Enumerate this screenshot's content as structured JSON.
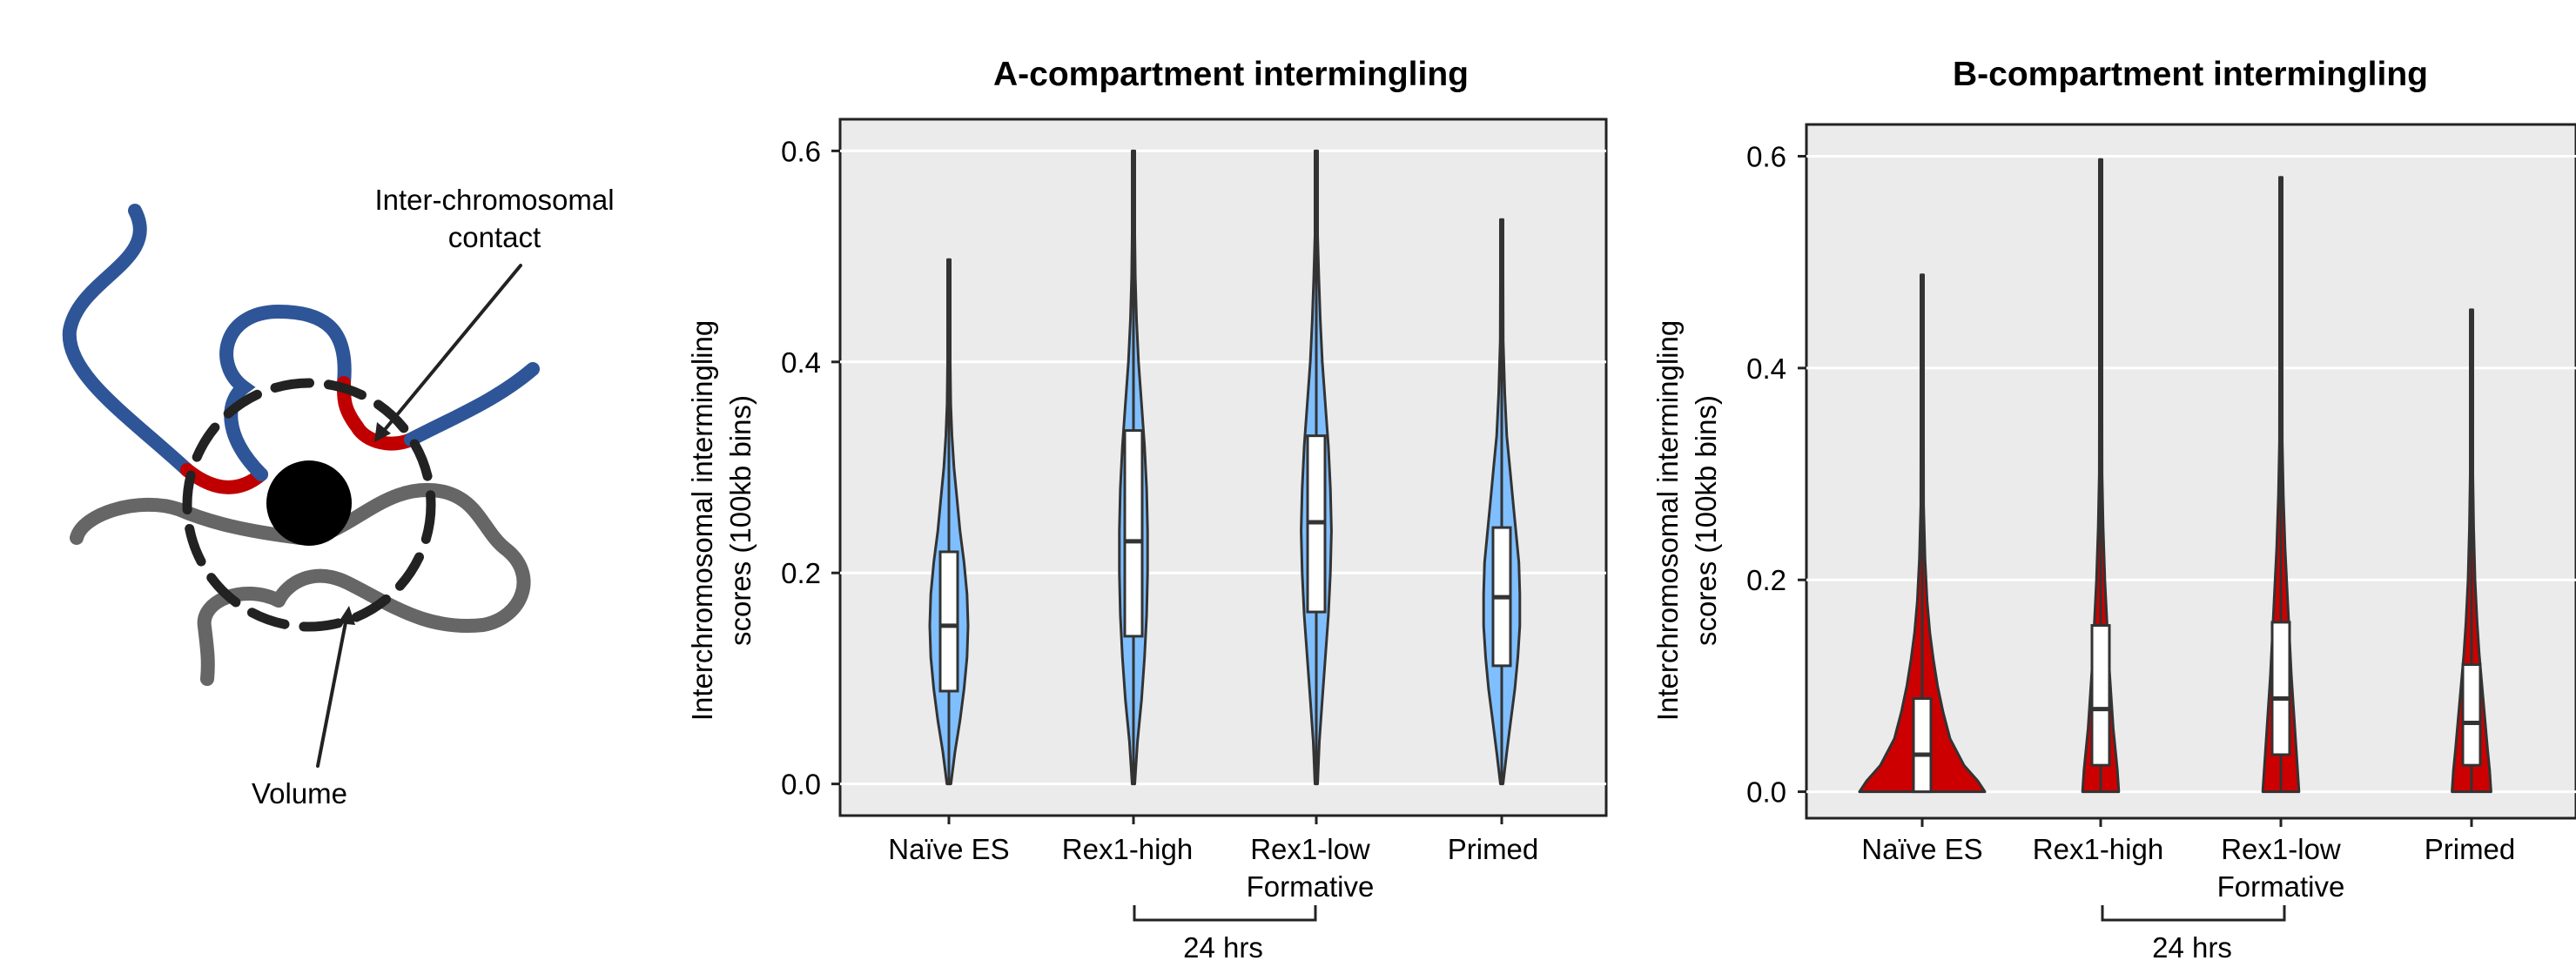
{
  "schematic": {
    "contact_label_line1": "Inter-chromosomal",
    "contact_label_line2": "contact",
    "volume_label": "Volume",
    "colors": {
      "blue": "#2e5597",
      "red": "#c00000",
      "gray": "#666666",
      "black": "#000000"
    }
  },
  "chart_data": [
    {
      "type": "violin",
      "title": "A-compartment intermingling",
      "ylabel_line1": "Interchromosomal intermingling",
      "ylabel_line2": "scores (100kb bins)",
      "categories": [
        "Naïve ES",
        "Rex1-high",
        "Rex1-low",
        "Primed"
      ],
      "category_sublabel": {
        "Rex1-low": "Formative"
      },
      "bracket_label": "24 hrs",
      "bracket_spans": [
        "Rex1-high",
        "Rex1-low"
      ],
      "ylim": [
        -0.03,
        0.63
      ],
      "yticks": [
        0.0,
        0.2,
        0.4,
        0.6
      ],
      "ytick_labels": [
        "0.0",
        "0.2",
        "0.4",
        "0.6"
      ],
      "grid": true,
      "fill_color": "#7fbfff",
      "stats": [
        {
          "name": "Naïve ES",
          "min": 0.0,
          "q1": 0.088,
          "median": 0.15,
          "q3": 0.22,
          "max": 0.497
        },
        {
          "name": "Rex1-high",
          "min": 0.0,
          "q1": 0.14,
          "median": 0.23,
          "q3": 0.335,
          "max": 0.6
        },
        {
          "name": "Rex1-low",
          "min": 0.0,
          "q1": 0.163,
          "median": 0.248,
          "q3": 0.33,
          "max": 0.6
        },
        {
          "name": "Primed",
          "min": 0.0,
          "q1": 0.112,
          "median": 0.177,
          "q3": 0.243,
          "max": 0.535
        }
      ],
      "density": [
        [
          [
            0,
            0.002
          ],
          [
            0.03,
            0.006
          ],
          [
            0.06,
            0.011
          ],
          [
            0.09,
            0.015
          ],
          [
            0.12,
            0.018
          ],
          [
            0.15,
            0.019
          ],
          [
            0.18,
            0.018
          ],
          [
            0.21,
            0.015
          ],
          [
            0.24,
            0.011
          ],
          [
            0.27,
            0.008
          ],
          [
            0.3,
            0.005
          ],
          [
            0.33,
            0.003
          ],
          [
            0.36,
            0.0018
          ],
          [
            0.4,
            0.001
          ],
          [
            0.45,
            0.0006
          ],
          [
            0.497,
            0.0003
          ]
        ],
        [
          [
            0,
            0.001
          ],
          [
            0.04,
            0.004
          ],
          [
            0.08,
            0.008
          ],
          [
            0.12,
            0.011
          ],
          [
            0.16,
            0.013
          ],
          [
            0.2,
            0.014
          ],
          [
            0.24,
            0.014
          ],
          [
            0.28,
            0.013
          ],
          [
            0.32,
            0.011
          ],
          [
            0.36,
            0.008
          ],
          [
            0.4,
            0.005
          ],
          [
            0.44,
            0.003
          ],
          [
            0.48,
            0.0018
          ],
          [
            0.52,
            0.001
          ],
          [
            0.56,
            0.0005
          ],
          [
            0.6,
            0.0002
          ]
        ],
        [
          [
            0,
            0.0005
          ],
          [
            0.04,
            0.003
          ],
          [
            0.08,
            0.006
          ],
          [
            0.12,
            0.009
          ],
          [
            0.16,
            0.012
          ],
          [
            0.2,
            0.014
          ],
          [
            0.24,
            0.015
          ],
          [
            0.28,
            0.014
          ],
          [
            0.32,
            0.012
          ],
          [
            0.36,
            0.009
          ],
          [
            0.4,
            0.006
          ],
          [
            0.44,
            0.004
          ],
          [
            0.48,
            0.0025
          ],
          [
            0.52,
            0.0013
          ],
          [
            0.56,
            0.0006
          ],
          [
            0.6,
            0.0002
          ]
        ],
        [
          [
            0,
            0.001
          ],
          [
            0.03,
            0.005
          ],
          [
            0.06,
            0.009
          ],
          [
            0.09,
            0.013
          ],
          [
            0.12,
            0.016
          ],
          [
            0.15,
            0.018
          ],
          [
            0.18,
            0.018
          ],
          [
            0.21,
            0.017
          ],
          [
            0.24,
            0.014
          ],
          [
            0.27,
            0.011
          ],
          [
            0.3,
            0.008
          ],
          [
            0.33,
            0.005
          ],
          [
            0.37,
            0.003
          ],
          [
            0.42,
            0.0015
          ],
          [
            0.48,
            0.0007
          ],
          [
            0.535,
            0.0003
          ]
        ]
      ]
    },
    {
      "type": "violin",
      "title": "B-compartment intermingling",
      "ylabel_line1": "Interchromosomal intermingling",
      "ylabel_line2": "scores (100kb bins)",
      "categories": [
        "Naïve ES",
        "Rex1-high",
        "Rex1-low",
        "Primed"
      ],
      "category_sublabel": {
        "Rex1-low": "Formative"
      },
      "bracket_label": "24 hrs",
      "bracket_spans": [
        "Rex1-high",
        "Rex1-low"
      ],
      "ylim": [
        -0.025,
        0.63
      ],
      "yticks": [
        0.0,
        0.2,
        0.4,
        0.6
      ],
      "ytick_labels": [
        "0.0",
        "0.2",
        "0.4",
        "0.6"
      ],
      "grid": true,
      "fill_color": "#cc0000",
      "stats": [
        {
          "name": "Naïve ES",
          "min": 0.0,
          "q1": 0.0,
          "median": 0.035,
          "q3": 0.088,
          "max": 0.488
        },
        {
          "name": "Rex1-high",
          "min": 0.0,
          "q1": 0.025,
          "median": 0.078,
          "q3": 0.157,
          "max": 0.597
        },
        {
          "name": "Rex1-low",
          "min": 0.0,
          "q1": 0.035,
          "median": 0.088,
          "q3": 0.16,
          "max": 0.58
        },
        {
          "name": "Primed",
          "min": 0.0,
          "q1": 0.025,
          "median": 0.065,
          "q3": 0.12,
          "max": 0.455
        }
      ],
      "density": [
        [
          [
            0,
            0.09
          ],
          [
            0.01,
            0.08
          ],
          [
            0.025,
            0.06
          ],
          [
            0.05,
            0.04
          ],
          [
            0.075,
            0.03
          ],
          [
            0.1,
            0.022
          ],
          [
            0.125,
            0.016
          ],
          [
            0.15,
            0.011
          ],
          [
            0.18,
            0.007
          ],
          [
            0.22,
            0.004
          ],
          [
            0.27,
            0.002
          ],
          [
            0.33,
            0.001
          ],
          [
            0.4,
            0.0005
          ],
          [
            0.488,
            0.0002
          ]
        ],
        [
          [
            0,
            0.026
          ],
          [
            0.02,
            0.024
          ],
          [
            0.04,
            0.021
          ],
          [
            0.06,
            0.018
          ],
          [
            0.09,
            0.015
          ],
          [
            0.12,
            0.012
          ],
          [
            0.16,
            0.009
          ],
          [
            0.2,
            0.006
          ],
          [
            0.25,
            0.0035
          ],
          [
            0.3,
            0.002
          ],
          [
            0.36,
            0.001
          ],
          [
            0.45,
            0.0005
          ],
          [
            0.597,
            0.0002
          ]
        ],
        [
          [
            0,
            0.026
          ],
          [
            0.02,
            0.024
          ],
          [
            0.05,
            0.021
          ],
          [
            0.08,
            0.018
          ],
          [
            0.11,
            0.015
          ],
          [
            0.15,
            0.012
          ],
          [
            0.19,
            0.009
          ],
          [
            0.23,
            0.006
          ],
          [
            0.28,
            0.0035
          ],
          [
            0.33,
            0.002
          ],
          [
            0.4,
            0.001
          ],
          [
            0.48,
            0.0005
          ],
          [
            0.58,
            0.0002
          ]
        ],
        [
          [
            0,
            0.028
          ],
          [
            0.02,
            0.026
          ],
          [
            0.04,
            0.023
          ],
          [
            0.07,
            0.019
          ],
          [
            0.1,
            0.015
          ],
          [
            0.13,
            0.011
          ],
          [
            0.16,
            0.008
          ],
          [
            0.2,
            0.005
          ],
          [
            0.25,
            0.003
          ],
          [
            0.3,
            0.0015
          ],
          [
            0.36,
            0.0008
          ],
          [
            0.455,
            0.0003
          ]
        ]
      ]
    }
  ]
}
